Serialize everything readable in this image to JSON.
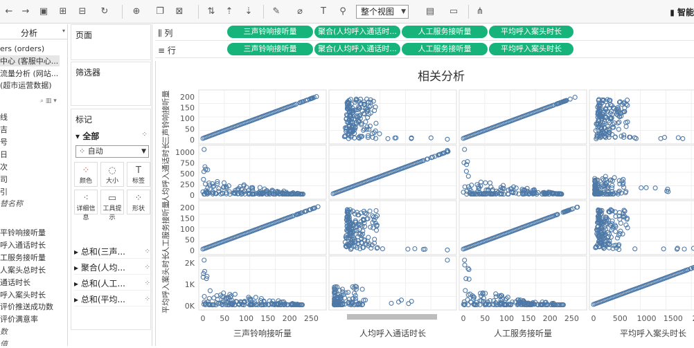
{
  "toolbar": {
    "view_mode": "整个视图",
    "brand": "智能",
    "icons": [
      "back-icon",
      "forward-icon",
      "save-icon",
      "new-datasource-icon",
      "pause-icon",
      "refresh-icon",
      "new-sheet-icon",
      "duplicate-icon",
      "clear-icon",
      "swap-icon",
      "sort-asc-icon",
      "sort-desc-icon",
      "highlight-icon",
      "group-icon",
      "label-icon",
      "pin-icon",
      "fit-icon",
      "present-icon",
      "share-icon"
    ]
  },
  "left_pane": {
    "tab": "分析",
    "datasources": [
      "ers (orders)",
      "中心 (客服中心...",
      "流量分析 (网站...",
      "(超市运营数据)"
    ],
    "dimension_stubs": [
      "线",
      "吉",
      "号",
      "日",
      "次",
      "司",
      "引"
    ],
    "italic_field_1": "替名称",
    "measures": [
      "平铃响接听量",
      "呼入通话时长",
      "工服务接听量",
      "人案头总时长",
      "通话时长",
      "呼入案头时长",
      "评价推送成功数",
      "评价满意率"
    ],
    "italic_field_2": "数",
    "italic_field_3": "值"
  },
  "mid_pane": {
    "pages_title": "页面",
    "filters_title": "筛选器",
    "marks_title": "标记",
    "marks_all": "全部",
    "mark_type": "自动",
    "mark_buttons": [
      "颜色",
      "大小",
      "标签",
      "详细信息",
      "工具提示",
      "形状"
    ],
    "mark_fields": [
      "总和(三声...",
      "聚合(人均...",
      "总和(人工...",
      "总和(平均..."
    ]
  },
  "shelves": {
    "columns_label": "列",
    "rows_label": "行",
    "columns": [
      "三声铃响接听量",
      "聚合(人均呼入通话时...",
      "人工服务接听量",
      "平均呼入案头时长"
    ],
    "rows": [
      "三声铃响接听量",
      "聚合(人均呼入通话时...",
      "人工服务接听量",
      "平均呼入案头时长"
    ]
  },
  "chart_data": {
    "type": "scatter",
    "title": "相关分析",
    "point_color": "#4e79a7",
    "pill_color": "#16b37a",
    "variables": [
      "三声铃响接听量",
      "人均呼入通话时长",
      "人工服务接听量",
      "平均呼入案头时长"
    ],
    "row_axis_ticks": [
      [
        "0",
        "50",
        "100",
        "150",
        "200"
      ],
      [
        "0",
        "250",
        "500",
        "750",
        "1000"
      ],
      [
        "0",
        "50",
        "100",
        "150",
        "200"
      ],
      [
        "0K",
        "1K",
        "2K"
      ]
    ],
    "col_axis_ticks": [
      [
        "0",
        "50",
        "100",
        "150",
        "200",
        "250"
      ],
      [],
      [
        "0",
        "50",
        "100",
        "150",
        "200",
        "250"
      ],
      [
        "0",
        "500",
        "1000",
        "1500",
        "200"
      ]
    ],
    "grid": true,
    "legend": "none"
  }
}
